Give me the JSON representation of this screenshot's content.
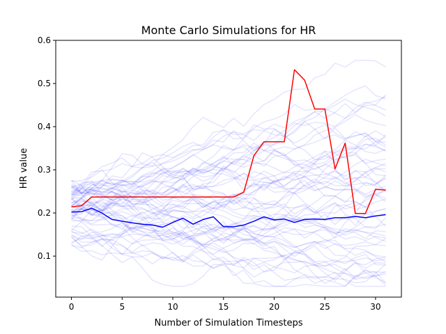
{
  "chart_data": {
    "type": "line",
    "title": "Monte Carlo Simulations for HR",
    "xlabel": "Number of Simulation Timesteps",
    "ylabel": "HR value",
    "xlim": [
      -1.55,
      32.55
    ],
    "ylim": [
      0.005,
      0.6
    ],
    "xticks": [
      0,
      5,
      10,
      15,
      20,
      25,
      30
    ],
    "xtick_labels": [
      "0",
      "5",
      "10",
      "15",
      "20",
      "25",
      "30"
    ],
    "yticks": [
      0.1,
      0.2,
      0.3,
      0.4,
      0.5,
      0.6
    ],
    "ytick_labels": [
      "0.1",
      "0.2",
      "0.3",
      "0.4",
      "0.5",
      "0.6"
    ],
    "grid": false,
    "x": [
      0,
      1,
      2,
      3,
      4,
      5,
      6,
      7,
      8,
      9,
      10,
      11,
      12,
      13,
      14,
      15,
      16,
      17,
      18,
      19,
      20,
      21,
      22,
      23,
      24,
      25,
      26,
      27,
      28,
      29,
      30,
      31
    ],
    "series": [
      {
        "color": "#ff0000",
        "values": [
          0.214,
          0.217,
          0.237,
          0.237,
          0.237,
          0.237,
          0.237,
          0.237,
          0.237,
          0.237,
          0.237,
          0.237,
          0.237,
          0.237,
          0.237,
          0.237,
          0.237,
          0.248,
          0.333,
          0.365,
          0.365,
          0.365,
          0.532,
          0.508,
          0.441,
          0.441,
          0.302,
          0.362,
          0.199,
          0.199,
          0.255,
          0.253
        ]
      },
      {
        "color": "#0000ff",
        "values": [
          0.202,
          0.203,
          0.211,
          0.2,
          0.185,
          0.181,
          0.177,
          0.174,
          0.172,
          0.167,
          0.178,
          0.188,
          0.174,
          0.185,
          0.191,
          0.168,
          0.168,
          0.172,
          0.181,
          0.191,
          0.184,
          0.186,
          0.178,
          0.185,
          0.186,
          0.185,
          0.189,
          0.189,
          0.192,
          0.189,
          0.193,
          0.196
        ]
      }
    ],
    "simulations": {
      "color": "#0000ff",
      "count": 60,
      "start_range": [
        0.125,
        0.28
      ],
      "range": [
        0.03,
        0.575
      ],
      "floor": 0.03
    }
  }
}
